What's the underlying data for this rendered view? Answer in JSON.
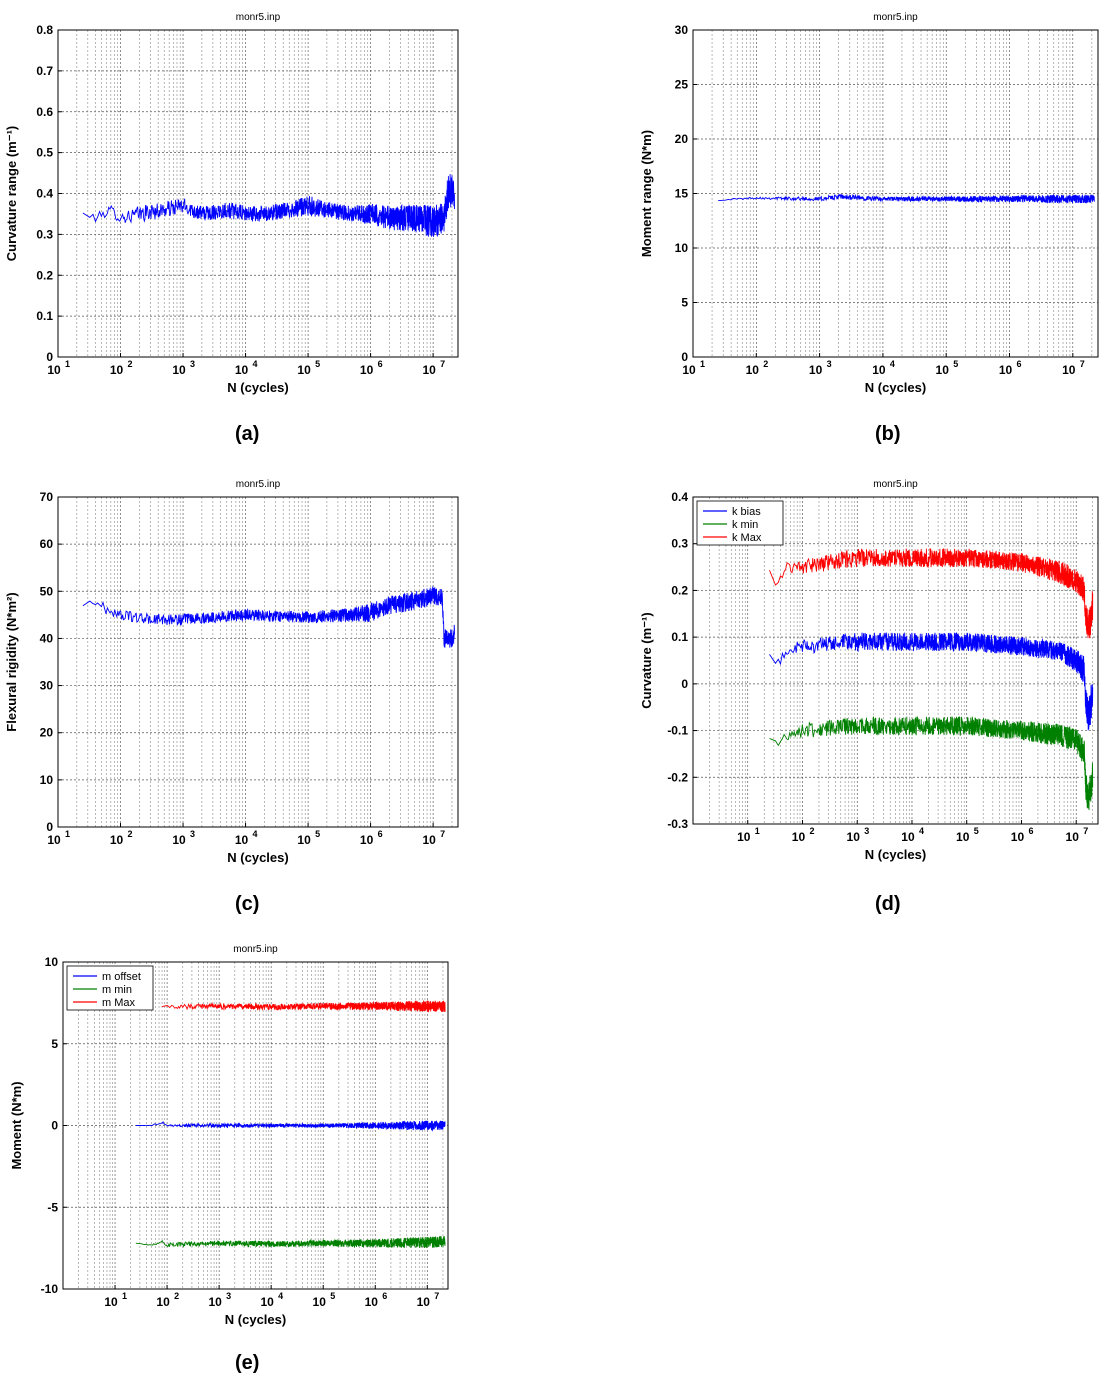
{
  "chart_data": [
    {
      "id": "a",
      "type": "line",
      "panel_label": "(a)",
      "title": "monr5.inp",
      "xlabel": "N (cycles)",
      "ylabel": "Curvature range (m⁻¹)",
      "xscale": "log",
      "xlim": [
        10,
        25000000
      ],
      "ylim": [
        0,
        0.8
      ],
      "yticks": [
        0,
        0.1,
        0.2,
        0.3,
        0.4,
        0.5,
        0.6,
        0.7,
        0.8
      ],
      "ytick_labels": [
        "0",
        "0.1",
        "0.2",
        "0.3",
        "0.4",
        "0.5",
        "0.6",
        "0.7",
        "0.8"
      ],
      "xtick_exponents": [
        1,
        2,
        3,
        4,
        5,
        6,
        7
      ],
      "grid": true,
      "series": [
        {
          "color": "#0000ff",
          "noise": "dense",
          "x": [
            25,
            40,
            70,
            100,
            200,
            500,
            1000,
            2000,
            5000,
            10000,
            20000,
            50000,
            100000,
            200000,
            500000,
            1000000,
            2000000,
            5000000,
            10000000,
            15000000,
            17000000,
            20000000,
            22000000
          ],
          "y": [
            0.35,
            0.34,
            0.36,
            0.34,
            0.35,
            0.36,
            0.37,
            0.35,
            0.36,
            0.35,
            0.35,
            0.36,
            0.37,
            0.36,
            0.35,
            0.35,
            0.34,
            0.34,
            0.33,
            0.34,
            0.4,
            0.41,
            0.39
          ],
          "amp": [
            0.008,
            0.01,
            0.012,
            0.015,
            0.02,
            0.02,
            0.02,
            0.018,
            0.02,
            0.02,
            0.02,
            0.02,
            0.025,
            0.02,
            0.02,
            0.025,
            0.03,
            0.035,
            0.04,
            0.04,
            0.045,
            0.04,
            0.03
          ]
        }
      ]
    },
    {
      "id": "b",
      "type": "line",
      "panel_label": "(b)",
      "title": "monr5.inp",
      "xlabel": "N (cycles)",
      "ylabel": "Moment range (N*m)",
      "xscale": "log",
      "xlim": [
        10,
        25000000
      ],
      "ylim": [
        0,
        30
      ],
      "yticks": [
        0,
        5,
        10,
        15,
        20,
        25,
        30
      ],
      "ytick_labels": [
        "0",
        "5",
        "10",
        "15",
        "20",
        "25",
        "30"
      ],
      "xtick_exponents": [
        1,
        2,
        3,
        4,
        5,
        6,
        7
      ],
      "grid": true,
      "series": [
        {
          "color": "#0000ff",
          "noise": "dense",
          "x": [
            25,
            100,
            1000,
            2000,
            10000,
            100000,
            1000000,
            10000000,
            22000000
          ],
          "y": [
            14.4,
            14.6,
            14.5,
            14.7,
            14.5,
            14.5,
            14.5,
            14.5,
            14.5
          ],
          "amp": [
            0.05,
            0.1,
            0.2,
            0.25,
            0.2,
            0.25,
            0.3,
            0.4,
            0.4
          ]
        }
      ]
    },
    {
      "id": "c",
      "type": "line",
      "panel_label": "(c)",
      "title": "monr5.inp",
      "xlabel": "N (cycles)",
      "ylabel": "Flexural rigidity (N*m²)",
      "xscale": "log",
      "xlim": [
        10,
        25000000
      ],
      "ylim": [
        0,
        70
      ],
      "yticks": [
        0,
        10,
        20,
        30,
        40,
        50,
        60,
        70
      ],
      "ytick_labels": [
        "0",
        "10",
        "20",
        "30",
        "40",
        "50",
        "60",
        "70"
      ],
      "xtick_exponents": [
        1,
        2,
        3,
        4,
        5,
        6,
        7
      ],
      "grid": true,
      "series": [
        {
          "color": "#0000ff",
          "noise": "dense",
          "x": [
            25,
            40,
            60,
            100,
            300,
            1000,
            10000,
            100000,
            500000,
            1000000,
            2000000,
            5000000,
            10000000,
            14000000,
            15000000,
            20000000,
            22000000
          ],
          "y": [
            47,
            48,
            46,
            45,
            44,
            44,
            45,
            44.5,
            45,
            45.5,
            47,
            48,
            49,
            49,
            40,
            40,
            41
          ],
          "amp": [
            0.5,
            1.0,
            1.0,
            1.0,
            1.2,
            1.2,
            1.2,
            1.2,
            1.5,
            2.0,
            2.0,
            2.0,
            2.0,
            2.0,
            2.0,
            2.0,
            2.0
          ]
        }
      ]
    },
    {
      "id": "d",
      "type": "line",
      "panel_label": "(d)",
      "title": "monr5.inp",
      "xlabel": "N (cycles)",
      "ylabel": "Curvature (m⁻¹)",
      "xscale": "log",
      "xlim": [
        1,
        25000000
      ],
      "ylim": [
        -0.3,
        0.4
      ],
      "yticks": [
        -0.3,
        -0.2,
        -0.1,
        0,
        0.1,
        0.2,
        0.3,
        0.4
      ],
      "ytick_labels": [
        "-0.3",
        "-0.2",
        "-0.1",
        "0",
        "0.1",
        "0.2",
        "0.3",
        "0.4"
      ],
      "xtick_exponents": [
        1,
        2,
        3,
        4,
        5,
        6,
        7
      ],
      "grid": true,
      "legend": {
        "position": "top-left",
        "entries": [
          {
            "label": "k bias",
            "color": "#0000ff"
          },
          {
            "label": "k min",
            "color": "#008000"
          },
          {
            "label": "k Max",
            "color": "#ff0000"
          }
        ]
      },
      "series": [
        {
          "name": "k bias",
          "color": "#0000ff",
          "noise": "dense",
          "x": [
            25,
            35,
            50,
            100,
            1000,
            10000,
            100000,
            1000000,
            5000000,
            10000000,
            14000000,
            15000000,
            17000000,
            20000000
          ],
          "y": [
            0.06,
            0.04,
            0.07,
            0.08,
            0.09,
            0.09,
            0.09,
            0.08,
            0.07,
            0.05,
            0.03,
            -0.04,
            -0.07,
            -0.02
          ],
          "amp": [
            0.005,
            0.01,
            0.01,
            0.015,
            0.02,
            0.02,
            0.02,
            0.02,
            0.02,
            0.025,
            0.03,
            0.03,
            0.04,
            0.04
          ]
        },
        {
          "name": "k min",
          "color": "#008000",
          "noise": "dense",
          "x": [
            25,
            35,
            50,
            100,
            1000,
            10000,
            100000,
            1000000,
            5000000,
            10000000,
            14000000,
            15000000,
            17000000,
            20000000
          ],
          "y": [
            -0.12,
            -0.13,
            -0.11,
            -0.1,
            -0.09,
            -0.09,
            -0.09,
            -0.1,
            -0.11,
            -0.12,
            -0.15,
            -0.22,
            -0.25,
            -0.2
          ],
          "amp": [
            0.005,
            0.01,
            0.01,
            0.015,
            0.02,
            0.02,
            0.02,
            0.02,
            0.025,
            0.025,
            0.03,
            0.03,
            0.04,
            0.04
          ]
        },
        {
          "name": "k Max",
          "color": "#ff0000",
          "noise": "dense",
          "x": [
            25,
            35,
            50,
            100,
            1000,
            10000,
            100000,
            1000000,
            5000000,
            10000000,
            14000000,
            15000000,
            17000000,
            20000000
          ],
          "y": [
            0.24,
            0.21,
            0.25,
            0.25,
            0.27,
            0.27,
            0.27,
            0.26,
            0.24,
            0.22,
            0.2,
            0.14,
            0.12,
            0.17
          ],
          "amp": [
            0.005,
            0.01,
            0.01,
            0.015,
            0.02,
            0.02,
            0.02,
            0.02,
            0.025,
            0.025,
            0.03,
            0.03,
            0.04,
            0.04
          ]
        }
      ]
    },
    {
      "id": "e",
      "type": "line",
      "panel_label": "(e)",
      "title": "monr5.inp",
      "xlabel": "N (cycles)",
      "ylabel": "Moment (N*m)",
      "xscale": "log",
      "xlim": [
        1,
        25000000
      ],
      "ylim": [
        -10,
        10
      ],
      "yticks": [
        -10,
        -5,
        0,
        5,
        10
      ],
      "ytick_labels": [
        "-10",
        "-5",
        "0",
        "5",
        "10"
      ],
      "xtick_exponents": [
        1,
        2,
        3,
        4,
        5,
        6,
        7
      ],
      "grid": true,
      "legend": {
        "position": "top-left",
        "entries": [
          {
            "label": "m offset",
            "color": "#0000ff"
          },
          {
            "label": "m min",
            "color": "#008000"
          },
          {
            "label": "m Max",
            "color": "#ff0000"
          }
        ]
      },
      "series": [
        {
          "name": "m offset",
          "color": "#0000ff",
          "noise": "dense",
          "x": [
            25,
            50,
            80,
            100,
            1000,
            10000,
            100000,
            1000000,
            10000000,
            22000000
          ],
          "y": [
            0.0,
            0.0,
            0.2,
            0.0,
            0.0,
            0.0,
            0.0,
            0.0,
            0.0,
            0.0
          ],
          "amp": [
            0.0,
            0.02,
            0.08,
            0.08,
            0.12,
            0.12,
            0.12,
            0.2,
            0.3,
            0.3
          ]
        },
        {
          "name": "m min",
          "color": "#008000",
          "noise": "dense",
          "x": [
            25,
            50,
            80,
            100,
            1000,
            10000,
            100000,
            1000000,
            10000000,
            22000000
          ],
          "y": [
            -7.2,
            -7.3,
            -7.1,
            -7.3,
            -7.2,
            -7.25,
            -7.2,
            -7.2,
            -7.15,
            -7.1
          ],
          "amp": [
            0.0,
            0.05,
            0.1,
            0.12,
            0.18,
            0.18,
            0.2,
            0.25,
            0.35,
            0.35
          ]
        },
        {
          "name": "m Max",
          "color": "#ff0000",
          "noise": "dense",
          "x": [
            80,
            100,
            1000,
            10000,
            100000,
            1000000,
            10000000,
            22000000
          ],
          "y": [
            7.3,
            7.25,
            7.3,
            7.25,
            7.3,
            7.3,
            7.3,
            7.3
          ],
          "amp": [
            0.05,
            0.12,
            0.18,
            0.18,
            0.2,
            0.25,
            0.35,
            0.35
          ]
        }
      ]
    }
  ]
}
